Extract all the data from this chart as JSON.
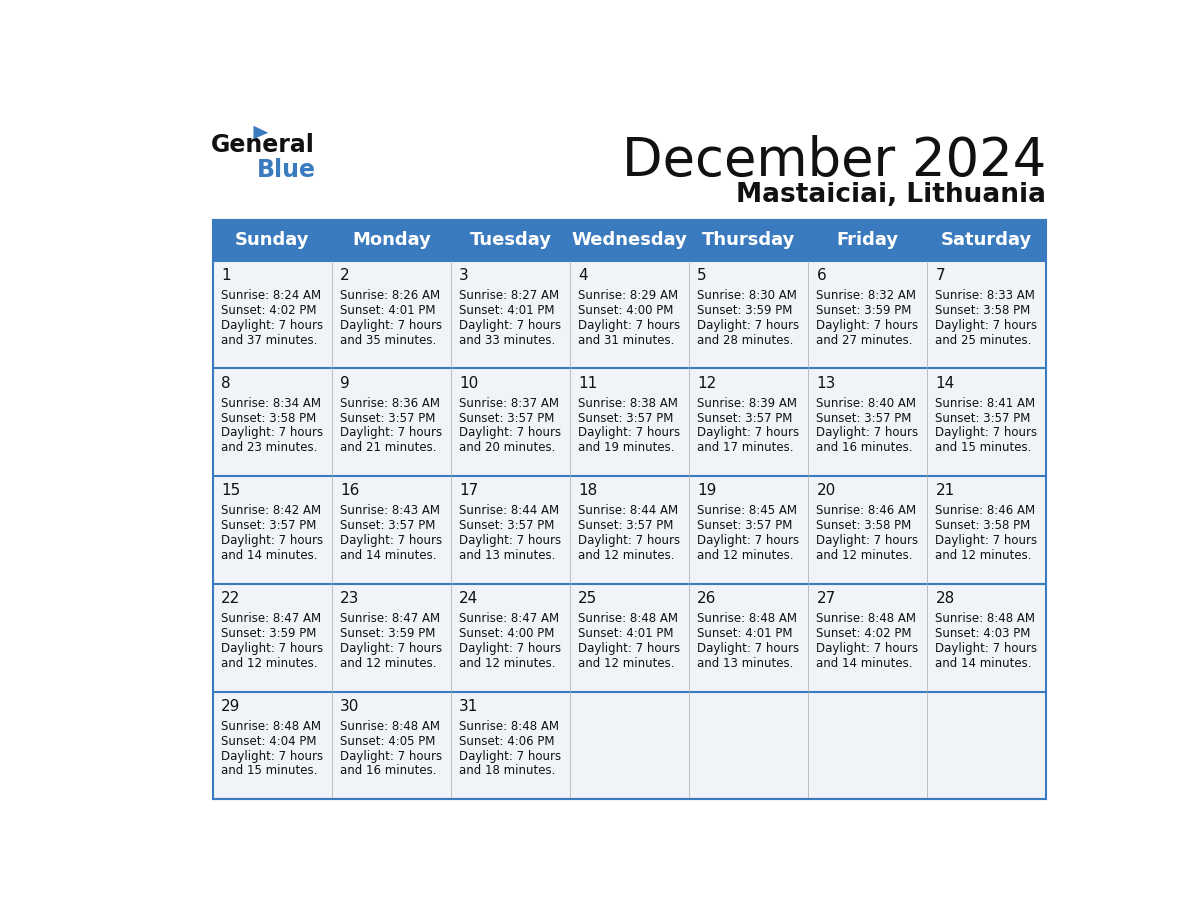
{
  "title": "December 2024",
  "subtitle": "Mastaiciai, Lithuania",
  "header_color": "#3a7abf",
  "header_text_color": "#ffffff",
  "day_names": [
    "Sunday",
    "Monday",
    "Tuesday",
    "Wednesday",
    "Thursday",
    "Friday",
    "Saturday"
  ],
  "bg_color": "#ffffff",
  "cell_bg": "#f0f4f8",
  "row_separator_color": "#3a7abf",
  "days": [
    {
      "day": 1,
      "col": 0,
      "row": 0,
      "sunrise": "8:24 AM",
      "sunset": "4:02 PM",
      "daylight": "7 hours and 37 minutes."
    },
    {
      "day": 2,
      "col": 1,
      "row": 0,
      "sunrise": "8:26 AM",
      "sunset": "4:01 PM",
      "daylight": "7 hours and 35 minutes."
    },
    {
      "day": 3,
      "col": 2,
      "row": 0,
      "sunrise": "8:27 AM",
      "sunset": "4:01 PM",
      "daylight": "7 hours and 33 minutes."
    },
    {
      "day": 4,
      "col": 3,
      "row": 0,
      "sunrise": "8:29 AM",
      "sunset": "4:00 PM",
      "daylight": "7 hours and 31 minutes."
    },
    {
      "day": 5,
      "col": 4,
      "row": 0,
      "sunrise": "8:30 AM",
      "sunset": "3:59 PM",
      "daylight": "7 hours and 28 minutes."
    },
    {
      "day": 6,
      "col": 5,
      "row": 0,
      "sunrise": "8:32 AM",
      "sunset": "3:59 PM",
      "daylight": "7 hours and 27 minutes."
    },
    {
      "day": 7,
      "col": 6,
      "row": 0,
      "sunrise": "8:33 AM",
      "sunset": "3:58 PM",
      "daylight": "7 hours and 25 minutes."
    },
    {
      "day": 8,
      "col": 0,
      "row": 1,
      "sunrise": "8:34 AM",
      "sunset": "3:58 PM",
      "daylight": "7 hours and 23 minutes."
    },
    {
      "day": 9,
      "col": 1,
      "row": 1,
      "sunrise": "8:36 AM",
      "sunset": "3:57 PM",
      "daylight": "7 hours and 21 minutes."
    },
    {
      "day": 10,
      "col": 2,
      "row": 1,
      "sunrise": "8:37 AM",
      "sunset": "3:57 PM",
      "daylight": "7 hours and 20 minutes."
    },
    {
      "day": 11,
      "col": 3,
      "row": 1,
      "sunrise": "8:38 AM",
      "sunset": "3:57 PM",
      "daylight": "7 hours and 19 minutes."
    },
    {
      "day": 12,
      "col": 4,
      "row": 1,
      "sunrise": "8:39 AM",
      "sunset": "3:57 PM",
      "daylight": "7 hours and 17 minutes."
    },
    {
      "day": 13,
      "col": 5,
      "row": 1,
      "sunrise": "8:40 AM",
      "sunset": "3:57 PM",
      "daylight": "7 hours and 16 minutes."
    },
    {
      "day": 14,
      "col": 6,
      "row": 1,
      "sunrise": "8:41 AM",
      "sunset": "3:57 PM",
      "daylight": "7 hours and 15 minutes."
    },
    {
      "day": 15,
      "col": 0,
      "row": 2,
      "sunrise": "8:42 AM",
      "sunset": "3:57 PM",
      "daylight": "7 hours and 14 minutes."
    },
    {
      "day": 16,
      "col": 1,
      "row": 2,
      "sunrise": "8:43 AM",
      "sunset": "3:57 PM",
      "daylight": "7 hours and 14 minutes."
    },
    {
      "day": 17,
      "col": 2,
      "row": 2,
      "sunrise": "8:44 AM",
      "sunset": "3:57 PM",
      "daylight": "7 hours and 13 minutes."
    },
    {
      "day": 18,
      "col": 3,
      "row": 2,
      "sunrise": "8:44 AM",
      "sunset": "3:57 PM",
      "daylight": "7 hours and 12 minutes."
    },
    {
      "day": 19,
      "col": 4,
      "row": 2,
      "sunrise": "8:45 AM",
      "sunset": "3:57 PM",
      "daylight": "7 hours and 12 minutes."
    },
    {
      "day": 20,
      "col": 5,
      "row": 2,
      "sunrise": "8:46 AM",
      "sunset": "3:58 PM",
      "daylight": "7 hours and 12 minutes."
    },
    {
      "day": 21,
      "col": 6,
      "row": 2,
      "sunrise": "8:46 AM",
      "sunset": "3:58 PM",
      "daylight": "7 hours and 12 minutes."
    },
    {
      "day": 22,
      "col": 0,
      "row": 3,
      "sunrise": "8:47 AM",
      "sunset": "3:59 PM",
      "daylight": "7 hours and 12 minutes."
    },
    {
      "day": 23,
      "col": 1,
      "row": 3,
      "sunrise": "8:47 AM",
      "sunset": "3:59 PM",
      "daylight": "7 hours and 12 minutes."
    },
    {
      "day": 24,
      "col": 2,
      "row": 3,
      "sunrise": "8:47 AM",
      "sunset": "4:00 PM",
      "daylight": "7 hours and 12 minutes."
    },
    {
      "day": 25,
      "col": 3,
      "row": 3,
      "sunrise": "8:48 AM",
      "sunset": "4:01 PM",
      "daylight": "7 hours and 12 minutes."
    },
    {
      "day": 26,
      "col": 4,
      "row": 3,
      "sunrise": "8:48 AM",
      "sunset": "4:01 PM",
      "daylight": "7 hours and 13 minutes."
    },
    {
      "day": 27,
      "col": 5,
      "row": 3,
      "sunrise": "8:48 AM",
      "sunset": "4:02 PM",
      "daylight": "7 hours and 14 minutes."
    },
    {
      "day": 28,
      "col": 6,
      "row": 3,
      "sunrise": "8:48 AM",
      "sunset": "4:03 PM",
      "daylight": "7 hours and 14 minutes."
    },
    {
      "day": 29,
      "col": 0,
      "row": 4,
      "sunrise": "8:48 AM",
      "sunset": "4:04 PM",
      "daylight": "7 hours and 15 minutes."
    },
    {
      "day": 30,
      "col": 1,
      "row": 4,
      "sunrise": "8:48 AM",
      "sunset": "4:05 PM",
      "daylight": "7 hours and 16 minutes."
    },
    {
      "day": 31,
      "col": 2,
      "row": 4,
      "sunrise": "8:48 AM",
      "sunset": "4:06 PM",
      "daylight": "7 hours and 18 minutes."
    }
  ]
}
